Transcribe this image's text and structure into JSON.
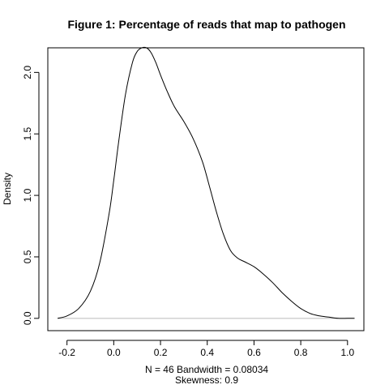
{
  "chart_data": {
    "type": "line",
    "title": "Figure 1: Percentage of reads that map to pathogen",
    "xlabel": "N = 46   Bandwidth = 0.08034",
    "xlabel2": "Skewness: 0.9",
    "ylabel": "Density",
    "xlim": [
      -0.282,
      1.07
    ],
    "ylim": [
      -0.1,
      2.2
    ],
    "x_ticks": [
      -0.2,
      0.0,
      0.2,
      0.4,
      0.6,
      0.8,
      1.0
    ],
    "x_tick_labels": [
      "-0.2",
      "0.0",
      "0.2",
      "0.4",
      "0.6",
      "0.8",
      "1.0"
    ],
    "y_ticks": [
      0.0,
      0.5,
      1.0,
      1.5,
      2.0
    ],
    "y_tick_labels": [
      "0.0",
      "0.5",
      "1.0",
      "1.5",
      "2.0"
    ],
    "zero_line": true,
    "line_color": "#000000",
    "series": [
      {
        "x": [
          -0.24,
          -0.2,
          -0.15,
          -0.1,
          -0.06,
          -0.02,
          0.0,
          0.02,
          0.05,
          0.08,
          0.1,
          0.12,
          0.14,
          0.16,
          0.18,
          0.2,
          0.23,
          0.26,
          0.3,
          0.34,
          0.38,
          0.41,
          0.44,
          0.47,
          0.5,
          0.53,
          0.56,
          0.6,
          0.64,
          0.68,
          0.72,
          0.76,
          0.8,
          0.84,
          0.88,
          0.92,
          0.96,
          1.0,
          1.03
        ],
        "y": [
          0.0,
          0.02,
          0.08,
          0.22,
          0.45,
          0.85,
          1.12,
          1.42,
          1.82,
          2.08,
          2.17,
          2.2,
          2.2,
          2.16,
          2.08,
          1.98,
          1.84,
          1.72,
          1.6,
          1.46,
          1.27,
          1.07,
          0.86,
          0.68,
          0.55,
          0.49,
          0.46,
          0.42,
          0.36,
          0.29,
          0.21,
          0.14,
          0.08,
          0.04,
          0.02,
          0.01,
          0.0,
          0.0,
          0.0
        ]
      }
    ]
  }
}
